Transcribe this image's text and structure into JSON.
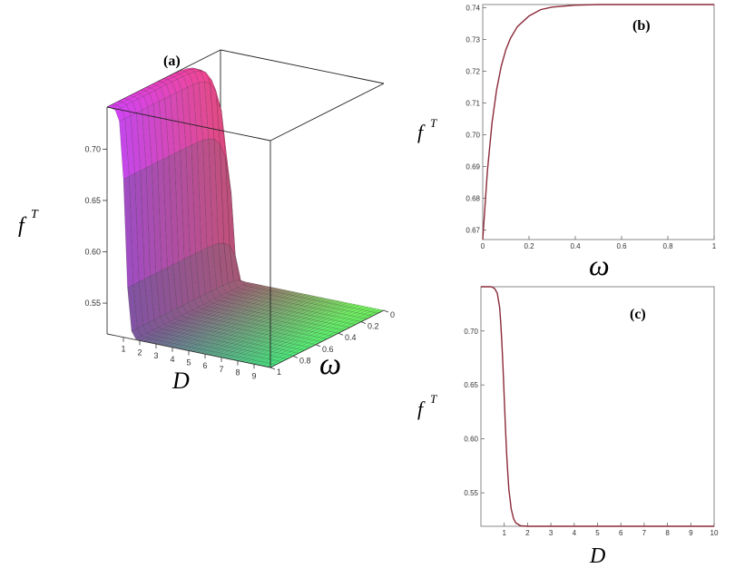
{
  "figure": {
    "panels": {
      "a": {
        "label": "(a)"
      },
      "b": {
        "label": "(b)"
      },
      "c": {
        "label": "(c)"
      }
    }
  },
  "chart_data": [
    {
      "id": "a",
      "type": "surface",
      "zlabel_base": "f",
      "zlabel_sup": "T",
      "xlabel": "D",
      "ylabel": "ω",
      "x_ticks": [
        "1",
        "2",
        "3",
        "4",
        "5",
        "6",
        "7",
        "8",
        "9"
      ],
      "y_ticks": [
        "1",
        "0.8",
        "0.6",
        "0.4",
        "0.2",
        "0"
      ],
      "z_ticks": [
        "0.55",
        "0.60",
        "0.65",
        "0.70"
      ],
      "xlim": [
        0,
        10
      ],
      "ylim": [
        0,
        1
      ],
      "zlim": [
        0.52,
        0.741
      ],
      "surface_model": "f = 0.52 + (0.741 - 0.52) * (1 - exp(-omega/0.06)) / (1 + exp((D - 1.1)/0.12))"
    },
    {
      "id": "b",
      "type": "line",
      "ylabel_base": "f",
      "ylabel_sup": "T",
      "xlabel": "ω",
      "xlim": [
        0,
        1
      ],
      "ylim": [
        0.667,
        0.741
      ],
      "x_ticks": [
        "0",
        "0.2",
        "0.4",
        "0.6",
        "0.8",
        "1"
      ],
      "y_ticks": [
        "0.67",
        "0.68",
        "0.69",
        "0.70",
        "0.71",
        "0.72",
        "0.73",
        "0.74"
      ],
      "color": "#8b2a3a",
      "series": [
        {
          "x": [
            0,
            0.02,
            0.04,
            0.06,
            0.08,
            0.1,
            0.12,
            0.15,
            0.2,
            0.25,
            0.3,
            0.4,
            0.5,
            0.6,
            0.7,
            0.8,
            0.9,
            1.0
          ],
          "y": [
            0.667,
            0.6885,
            0.7037,
            0.7142,
            0.7216,
            0.7268,
            0.7304,
            0.7341,
            0.7374,
            0.7394,
            0.7402,
            0.7408,
            0.741,
            0.741,
            0.741,
            0.741,
            0.741,
            0.741
          ]
        }
      ]
    },
    {
      "id": "c",
      "type": "line",
      "ylabel_base": "f",
      "ylabel_sup": "T",
      "xlabel": "D",
      "xlim": [
        0,
        10
      ],
      "ylim": [
        0.519,
        0.741
      ],
      "x_ticks": [
        "1",
        "2",
        "3",
        "4",
        "5",
        "6",
        "7",
        "8",
        "9",
        "10"
      ],
      "y_ticks": [
        "0.55",
        "0.60",
        "0.65",
        "0.70"
      ],
      "color": "#8b2a3a",
      "series": [
        {
          "x": [
            0,
            0.2,
            0.4,
            0.5,
            0.6,
            0.7,
            0.8,
            0.85,
            0.9,
            0.95,
            1.0,
            1.05,
            1.1,
            1.15,
            1.2,
            1.3,
            1.4,
            1.5,
            1.7,
            2,
            3,
            4,
            5,
            6,
            7,
            8,
            9,
            10
          ],
          "y": [
            0.741,
            0.741,
            0.741,
            0.7405,
            0.739,
            0.735,
            0.722,
            0.708,
            0.689,
            0.665,
            0.638,
            0.611,
            0.587,
            0.568,
            0.553,
            0.535,
            0.526,
            0.522,
            0.5195,
            0.519,
            0.519,
            0.519,
            0.519,
            0.519,
            0.519,
            0.519,
            0.519,
            0.519
          ]
        }
      ]
    }
  ]
}
